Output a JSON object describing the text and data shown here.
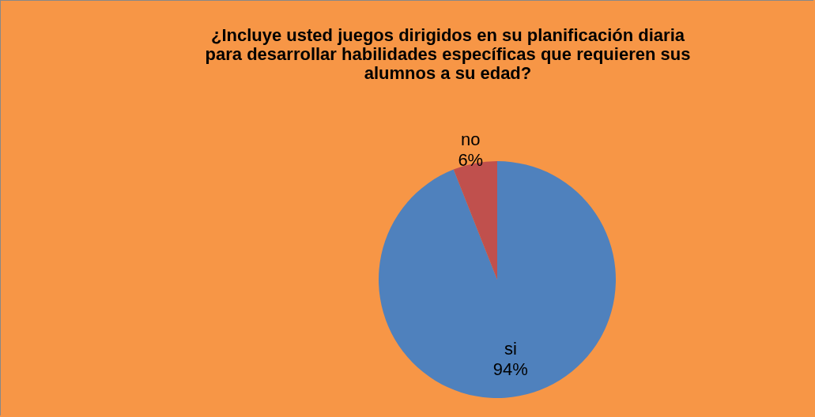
{
  "chart_data": {
    "type": "pie",
    "title": "¿Incluye usted juegos dirigidos en su planificación diaria\npara desarrollar habilidades específicas que requieren sus\nalumnos a su edad?",
    "categories": [
      "si",
      "no"
    ],
    "values": [
      94,
      6
    ],
    "colors": [
      "#4f81bd",
      "#c0504d"
    ],
    "value_labels": [
      "94%",
      "6%"
    ]
  }
}
